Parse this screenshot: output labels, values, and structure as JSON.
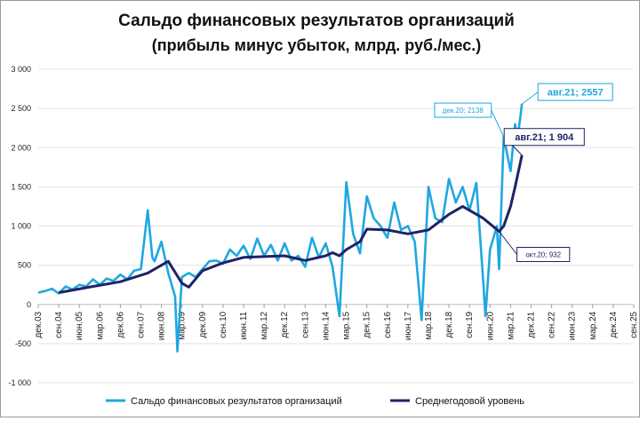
{
  "chart_data": {
    "type": "line",
    "title": "Сальдо финансовых результатов организаций",
    "subtitle": "(прибыль минус убыток, млрд. руб./мес.)",
    "xlabel": "",
    "ylabel": "",
    "ylim": [
      -1000,
      3000
    ],
    "yticks": [
      -1000,
      -500,
      0,
      500,
      1000,
      1500,
      2000,
      2500,
      3000
    ],
    "ytick_labels": [
      "-1 000",
      "-500",
      "0",
      "500",
      "1 000",
      "1 500",
      "2 000",
      "2 500",
      "3 000"
    ],
    "x_start": "дек.03",
    "x_end": "сен.25",
    "xtick_labels": [
      "дек.03",
      "сен.04",
      "июн.05",
      "мар.06",
      "дек.06",
      "сен.07",
      "июн.08",
      "мар.09",
      "дек.09",
      "сен.10",
      "июн.11",
      "мар.12",
      "дек.12",
      "сен.13",
      "июн.14",
      "мар.15",
      "дек.15",
      "сен.16",
      "июн.17",
      "мар.18",
      "дек.18",
      "сен.19",
      "июн.20",
      "мар.21",
      "дек.21",
      "сен.22",
      "июн.23",
      "мар.24",
      "дек.24",
      "сен.25"
    ],
    "grid": "horizontal",
    "legend_position": "bottom",
    "series": [
      {
        "name": "Сальдо финансовых результатов организаций",
        "color": "#1fa7e1",
        "points": [
          [
            "дек.03",
            150
          ],
          [
            "мар.04",
            170
          ],
          [
            "июн.04",
            200
          ],
          [
            "сен.04",
            140
          ],
          [
            "дек.04",
            230
          ],
          [
            "мар.05",
            190
          ],
          [
            "июн.05",
            250
          ],
          [
            "сен.05",
            230
          ],
          [
            "дек.05",
            320
          ],
          [
            "мар.06",
            250
          ],
          [
            "июн.06",
            330
          ],
          [
            "сен.06",
            300
          ],
          [
            "дек.06",
            380
          ],
          [
            "мар.07",
            320
          ],
          [
            "июн.07",
            430
          ],
          [
            "сен.07",
            450
          ],
          [
            "дек.07",
            1200
          ],
          [
            "фев.08",
            600
          ],
          [
            "мар.08",
            550
          ],
          [
            "июн.08",
            800
          ],
          [
            "сен.08",
            400
          ],
          [
            "дек.08",
            100
          ],
          [
            "янв.09",
            -600
          ],
          [
            "мар.09",
            350
          ],
          [
            "июн.09",
            400
          ],
          [
            "сен.09",
            350
          ],
          [
            "дек.09",
            450
          ],
          [
            "мар.10",
            550
          ],
          [
            "июн.10",
            560
          ],
          [
            "сен.10",
            520
          ],
          [
            "дек.10",
            700
          ],
          [
            "мар.11",
            620
          ],
          [
            "июн.11",
            750
          ],
          [
            "сен.11",
            580
          ],
          [
            "дек.11",
            840
          ],
          [
            "мар.12",
            620
          ],
          [
            "июн.12",
            760
          ],
          [
            "сен.12",
            560
          ],
          [
            "дек.12",
            780
          ],
          [
            "мар.13",
            560
          ],
          [
            "июн.13",
            620
          ],
          [
            "сен.13",
            480
          ],
          [
            "дек.13",
            850
          ],
          [
            "мар.14",
            600
          ],
          [
            "июн.14",
            780
          ],
          [
            "сен.14",
            480
          ],
          [
            "дек.14",
            -150
          ],
          [
            "мар.15",
            1560
          ],
          [
            "июн.15",
            900
          ],
          [
            "сен.15",
            650
          ],
          [
            "дек.15",
            1380
          ],
          [
            "мар.16",
            1100
          ],
          [
            "июн.16",
            1000
          ],
          [
            "сен.16",
            850
          ],
          [
            "дек.16",
            1300
          ],
          [
            "мар.17",
            950
          ],
          [
            "июн.17",
            1000
          ],
          [
            "сен.17",
            800
          ],
          [
            "дек.17",
            -200
          ],
          [
            "мар.18",
            1500
          ],
          [
            "июн.18",
            1100
          ],
          [
            "сен.18",
            1050
          ],
          [
            "дек.18",
            1600
          ],
          [
            "мар.19",
            1300
          ],
          [
            "июн.19",
            1500
          ],
          [
            "сен.19",
            1200
          ],
          [
            "дек.19",
            1550
          ],
          [
            "мар.20",
            300
          ],
          [
            "апр.20",
            -150
          ],
          [
            "июн.20",
            700
          ],
          [
            "сен.20",
            1000
          ],
          [
            "окт.20",
            450
          ],
          [
            "дек.20",
            2138
          ],
          [
            "мар.21",
            1700
          ],
          [
            "май.21",
            2300
          ],
          [
            "июн.21",
            2100
          ],
          [
            "авг.21",
            2557
          ]
        ]
      },
      {
        "name": "Среднегодовой уровень",
        "color": "#1f2366",
        "points": [
          [
            "сен.04",
            150
          ],
          [
            "дек.05",
            230
          ],
          [
            "дек.06",
            290
          ],
          [
            "дек.07",
            400
          ],
          [
            "сен.08",
            550
          ],
          [
            "мар.09",
            270
          ],
          [
            "июн.09",
            220
          ],
          [
            "дек.09",
            430
          ],
          [
            "сен.10",
            530
          ],
          [
            "июн.11",
            600
          ],
          [
            "мар.12",
            610
          ],
          [
            "дек.12",
            620
          ],
          [
            "сен.13",
            560
          ],
          [
            "июн.14",
            620
          ],
          [
            "сен.14",
            660
          ],
          [
            "дек.14",
            620
          ],
          [
            "мар.15",
            700
          ],
          [
            "сен.15",
            800
          ],
          [
            "дек.15",
            960
          ],
          [
            "сен.16",
            950
          ],
          [
            "июн.17",
            900
          ],
          [
            "мар.18",
            950
          ],
          [
            "дек.18",
            1150
          ],
          [
            "июн.19",
            1250
          ],
          [
            "сен.19",
            1200
          ],
          [
            "мар.20",
            1100
          ],
          [
            "окт.20",
            932
          ],
          [
            "дек.20",
            1000
          ],
          [
            "мар.21",
            1250
          ],
          [
            "май.21",
            1500
          ],
          [
            "авг.21",
            1904
          ]
        ]
      }
    ],
    "annotations": [
      {
        "text": "авг.21; 2557",
        "series": 0,
        "x": "авг.21",
        "y": 2557,
        "style": "large"
      },
      {
        "text": "дек.20; 2138",
        "series": 0,
        "x": "дек.20",
        "y": 2138,
        "style": "small"
      },
      {
        "text": "авг.21; 1 904",
        "series": 1,
        "x": "авг.21",
        "y": 1904,
        "style": "large"
      },
      {
        "text": "окт.20; 932",
        "series": 1,
        "x": "окт.20",
        "y": 932,
        "style": "small"
      }
    ]
  }
}
